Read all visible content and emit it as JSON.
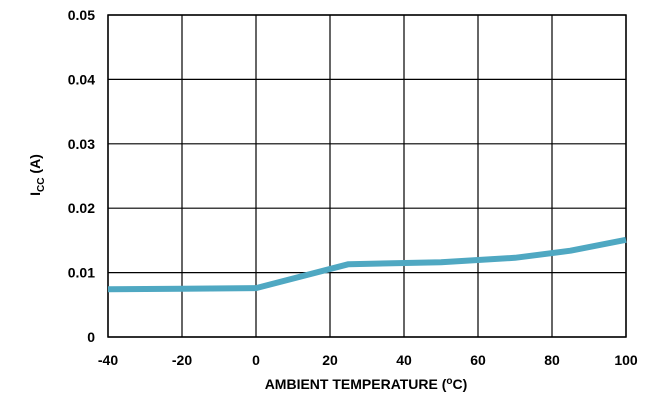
{
  "chart_data": {
    "type": "line",
    "title": "",
    "xlabel": "AMBIENT TEMPERATURE (",
    "xlabel_sup": "o",
    "xlabel_end": "C)",
    "ylabel": "I",
    "ylabel_sub": "CC",
    "ylabel_end": " (A)",
    "xlim": [
      -40,
      100
    ],
    "ylim": [
      0,
      0.05
    ],
    "xticks": [
      -40,
      -20,
      0,
      20,
      40,
      60,
      80,
      100
    ],
    "yticks": [
      0,
      0.01,
      0.02,
      0.03,
      0.04,
      0.05
    ],
    "xtick_labels": [
      "-40",
      "-20",
      "0",
      "20",
      "40",
      "60",
      "80",
      "100"
    ],
    "ytick_labels": [
      "0",
      "0.01",
      "0.02",
      "0.03",
      "0.04",
      "0.05"
    ],
    "grid": true,
    "legend": "none",
    "series": [
      {
        "color": "#4fa8c2",
        "x": [
          -40,
          -20,
          0,
          25,
          50,
          70,
          85,
          100
        ],
        "y": [
          0.0074,
          0.0075,
          0.0076,
          0.0113,
          0.0116,
          0.0123,
          0.0134,
          0.0151
        ]
      }
    ]
  }
}
